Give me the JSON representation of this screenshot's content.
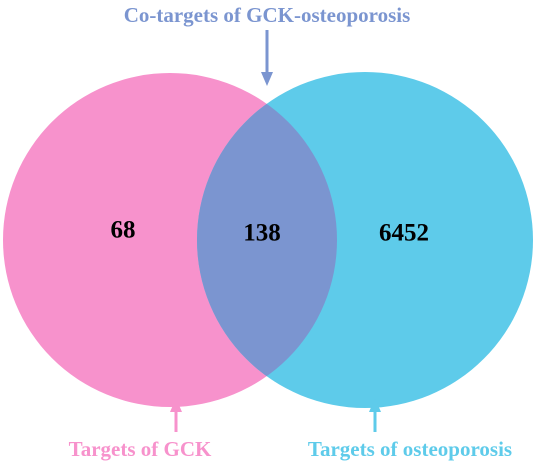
{
  "intersection_label": "Co-targets of GCK-osteoporosis",
  "sets": [
    {
      "label": "Targets of GCK",
      "count": 68
    },
    {
      "label": "Targets of osteoporosis",
      "count": 6452
    }
  ],
  "intersection_count": 138
}
